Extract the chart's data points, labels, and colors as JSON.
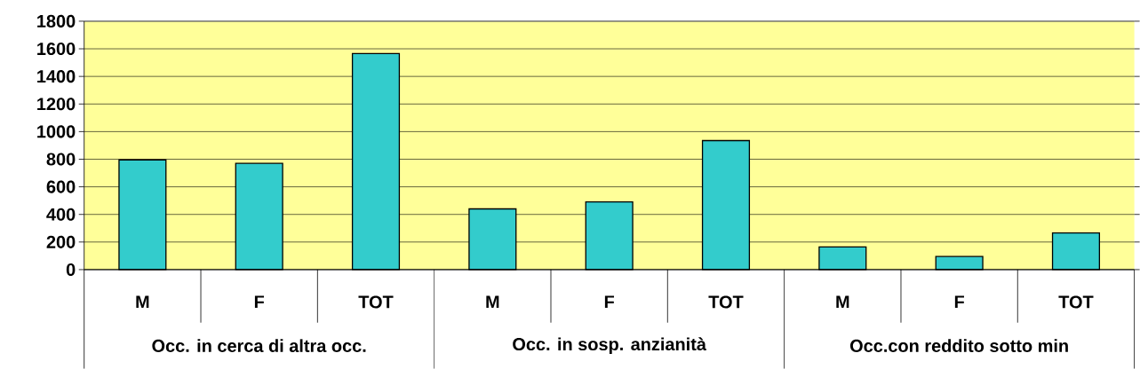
{
  "chart_data": {
    "type": "bar",
    "categories": [
      "M",
      "F",
      "TOT",
      "M",
      "F",
      "TOT",
      "M",
      "F",
      "TOT"
    ],
    "values": [
      795,
      770,
      1565,
      440,
      490,
      935,
      165,
      95,
      265
    ],
    "color": "#33cccc",
    "ylim": [
      0,
      1800
    ],
    "yticks": [
      0,
      200,
      400,
      600,
      800,
      1000,
      1200,
      1400,
      1600,
      1800
    ],
    "grid": "y",
    "annotations": [
      "Occ. in cerca di altra occ.",
      "Occ. in sosp. anzianità",
      "Occ.con reddito sotto min"
    ]
  }
}
